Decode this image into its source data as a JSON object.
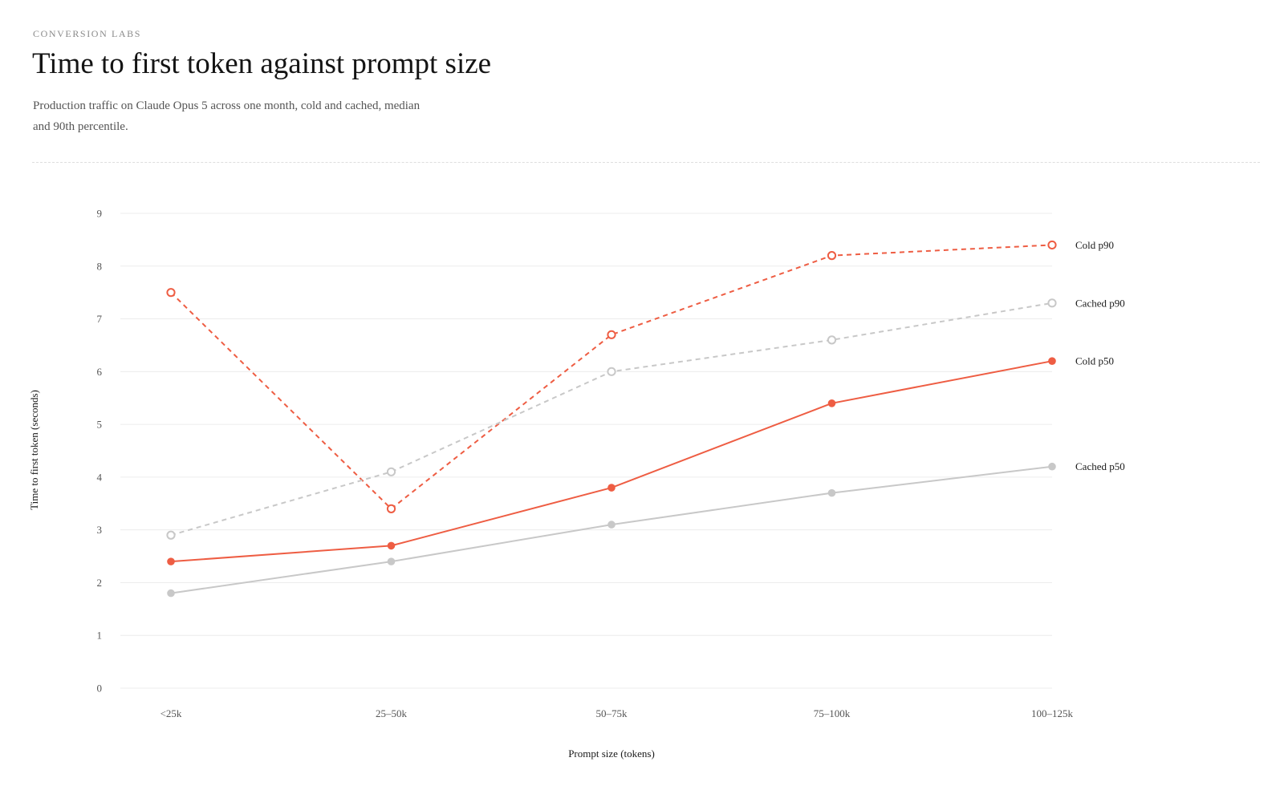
{
  "header": {
    "eyebrow": "CONVERSION LABS",
    "title": "Time to first token against prompt size",
    "subtitle": "Production traffic on Claude Opus 5 across one month, cold and cached, median and 90th percentile."
  },
  "colors": {
    "accent": "#ee5d43",
    "muted": "#c8c8c8",
    "grid": "#ececec",
    "tick_text": "#555555",
    "label_text": "#1a1a1a"
  },
  "chart_data": {
    "type": "line",
    "title": "Time to first token against prompt size",
    "xlabel": "Prompt size (tokens)",
    "ylabel": "Time to first token (seconds)",
    "categories": [
      "<25k",
      "25–50k",
      "50–75k",
      "75–100k",
      "100–125k"
    ],
    "ylim": [
      0,
      9
    ],
    "yticks": [
      0,
      1,
      2,
      3,
      4,
      5,
      6,
      7,
      8,
      9
    ],
    "grid": "horizontal",
    "legend": "direct labels at right end of lines",
    "series": [
      {
        "name": "Cold p90",
        "values": [
          7.5,
          3.4,
          6.7,
          8.2,
          8.4
        ],
        "color": "#ee5d43",
        "dashed": true,
        "marker": "hollow"
      },
      {
        "name": "Cached p90",
        "values": [
          2.9,
          4.1,
          6.0,
          6.6,
          7.3
        ],
        "color": "#c8c8c8",
        "dashed": true,
        "marker": "hollow"
      },
      {
        "name": "Cold p50",
        "values": [
          2.4,
          2.7,
          3.8,
          5.4,
          6.2
        ],
        "color": "#ee5d43",
        "dashed": false,
        "marker": "filled"
      },
      {
        "name": "Cached p50",
        "values": [
          1.8,
          2.4,
          3.1,
          3.7,
          4.2
        ],
        "color": "#c8c8c8",
        "dashed": false,
        "marker": "filled"
      }
    ]
  }
}
